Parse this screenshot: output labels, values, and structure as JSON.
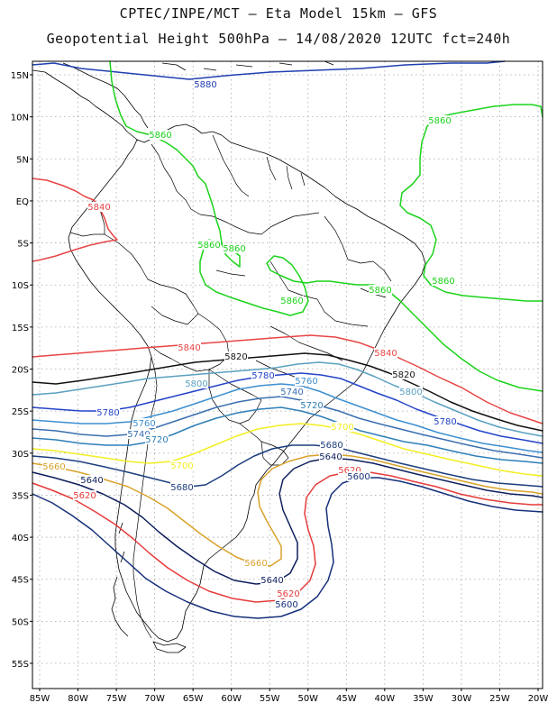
{
  "header": {
    "line1": "CPTEC/INPE/MCT  —   Eta Model 15km —  GFS",
    "line2": "Geopotential Height 500hPa — 14/08/2020 12UTC fct=240h"
  },
  "map": {
    "lat_labels": [
      "15N",
      "10N",
      "5N",
      "EQ",
      "5S",
      "10S",
      "15S",
      "20S",
      "25S",
      "30S",
      "35S",
      "40S",
      "45S",
      "50S",
      "55S"
    ],
    "lon_labels": [
      "85W",
      "80W",
      "75W",
      "70W",
      "65W",
      "60W",
      "55W",
      "50W",
      "45W",
      "40W",
      "35W",
      "30W",
      "25W",
      "20W"
    ],
    "contour_colors": {
      "5600": "#16307a",
      "5620": "#e63b3b",
      "5640": "#0d1f5c",
      "5660": "#d9a22b",
      "5680": "#1c3e7e",
      "5700": "#f2ee22",
      "5720": "#2e7fb8",
      "5740": "#3a6fb0",
      "5760": "#3d8fd0",
      "5780": "#2344c8",
      "5800": "#5aa0c0",
      "5820": "#111111",
      "5840": "#e84545",
      "5860": "#1bd31b",
      "5880": "#1f3fb0"
    },
    "contour_labels": [
      {
        "text": "5880",
        "color": "#1f3fb0"
      },
      {
        "text": "5860",
        "color": "#1bd31b"
      },
      {
        "text": "5860",
        "color": "#1bd31b"
      },
      {
        "text": "5840",
        "color": "#e84545"
      },
      {
        "text": "5860",
        "color": "#1bd31b"
      },
      {
        "text": "5860",
        "color": "#1bd31b"
      },
      {
        "text": "5860",
        "color": "#1bd31b"
      },
      {
        "text": "5860",
        "color": "#1bd31b"
      },
      {
        "text": "5860",
        "color": "#1bd31b"
      },
      {
        "text": "5840",
        "color": "#e84545"
      },
      {
        "text": "5820",
        "color": "#111111"
      },
      {
        "text": "5840",
        "color": "#e84545"
      },
      {
        "text": "5780",
        "color": "#2344c8"
      },
      {
        "text": "5760",
        "color": "#3d8fd0"
      },
      {
        "text": "5800",
        "color": "#5aa0c0"
      },
      {
        "text": "5740",
        "color": "#3a6fb0"
      },
      {
        "text": "5720",
        "color": "#2e7fb8"
      },
      {
        "text": "5820",
        "color": "#111111"
      },
      {
        "text": "5800",
        "color": "#5aa0c0"
      },
      {
        "text": "5780",
        "color": "#2344c8"
      },
      {
        "text": "5780",
        "color": "#2344c8"
      },
      {
        "text": "5760",
        "color": "#3d8fd0"
      },
      {
        "text": "5740",
        "color": "#3a6fb0"
      },
      {
        "text": "5720",
        "color": "#2e7fb8"
      },
      {
        "text": "5700",
        "color": "#f2ee22"
      },
      {
        "text": "5700",
        "color": "#f2ee22"
      },
      {
        "text": "5680",
        "color": "#1c3e7e"
      },
      {
        "text": "5660",
        "color": "#d9a22b"
      },
      {
        "text": "5640",
        "color": "#0d1f5c"
      },
      {
        "text": "5620",
        "color": "#e63b3b"
      },
      {
        "text": "5600",
        "color": "#16307a"
      },
      {
        "text": "5660",
        "color": "#d9a22b"
      },
      {
        "text": "5640",
        "color": "#0d1f5c"
      },
      {
        "text": "5620",
        "color": "#e63b3b"
      },
      {
        "text": "5680",
        "color": "#1c3e7e"
      },
      {
        "text": "5660",
        "color": "#d9a22b"
      },
      {
        "text": "5640",
        "color": "#0d1f5c"
      },
      {
        "text": "5620",
        "color": "#e63b3b"
      },
      {
        "text": "5600",
        "color": "#16307a"
      }
    ]
  }
}
